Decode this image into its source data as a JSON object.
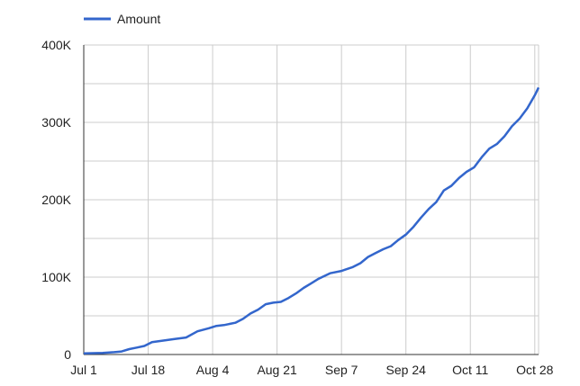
{
  "chart_data": {
    "type": "line",
    "title": "",
    "xlabel": "",
    "ylabel": "",
    "legend": {
      "position": "top-left",
      "entries": [
        "Amount"
      ]
    },
    "grid": true,
    "x_tick_labels": [
      "Jul 1",
      "Jul 18",
      "Aug 4",
      "Aug 21",
      "Sep 7",
      "Sep 24",
      "Oct 11",
      "Oct 28"
    ],
    "x_ticks": [
      "2023-07-01",
      "2023-07-18",
      "2023-08-04",
      "2023-08-21",
      "2023-09-07",
      "2023-09-24",
      "2023-10-11",
      "2023-10-28"
    ],
    "xlim": [
      "2023-07-01",
      "2023-10-29"
    ],
    "y_tick_labels": [
      "0",
      "100K",
      "200K",
      "300K",
      "400K"
    ],
    "y_ticks": [
      0,
      100000,
      200000,
      300000,
      400000
    ],
    "ylim": [
      0,
      400000
    ],
    "series": [
      {
        "name": "Amount",
        "color": "#3366cc",
        "x": [
          "2023-07-01",
          "2023-07-06",
          "2023-07-09",
          "2023-07-11",
          "2023-07-13",
          "2023-07-15",
          "2023-07-17",
          "2023-07-19",
          "2023-07-22",
          "2023-07-25",
          "2023-07-28",
          "2023-07-31",
          "2023-08-03",
          "2023-08-05",
          "2023-08-07",
          "2023-08-10",
          "2023-08-12",
          "2023-08-14",
          "2023-08-16",
          "2023-08-18",
          "2023-08-20",
          "2023-08-22",
          "2023-08-24",
          "2023-08-26",
          "2023-08-28",
          "2023-08-30",
          "2023-09-01",
          "2023-09-04",
          "2023-09-07",
          "2023-09-10",
          "2023-09-12",
          "2023-09-14",
          "2023-09-16",
          "2023-09-18",
          "2023-09-20",
          "2023-09-22",
          "2023-09-24",
          "2023-09-26",
          "2023-09-28",
          "2023-09-30",
          "2023-10-02",
          "2023-10-04",
          "2023-10-06",
          "2023-10-08",
          "2023-10-10",
          "2023-10-12",
          "2023-10-14",
          "2023-10-16",
          "2023-10-18",
          "2023-10-20",
          "2023-10-22",
          "2023-10-24",
          "2023-10-26",
          "2023-10-28",
          "2023-10-29"
        ],
        "values": [
          1500,
          2000,
          3000,
          4000,
          7000,
          9000,
          11000,
          16000,
          18000,
          20000,
          22000,
          30000,
          34000,
          37000,
          38000,
          41000,
          46000,
          53000,
          58000,
          65000,
          67000,
          68000,
          73000,
          79000,
          86000,
          92000,
          98000,
          105000,
          108000,
          113000,
          118000,
          126000,
          131000,
          136000,
          140000,
          148000,
          155000,
          165000,
          177000,
          188000,
          197000,
          212000,
          218000,
          228000,
          236000,
          242000,
          255000,
          266000,
          272000,
          282000,
          295000,
          305000,
          318000,
          335000,
          345000
        ]
      }
    ]
  }
}
